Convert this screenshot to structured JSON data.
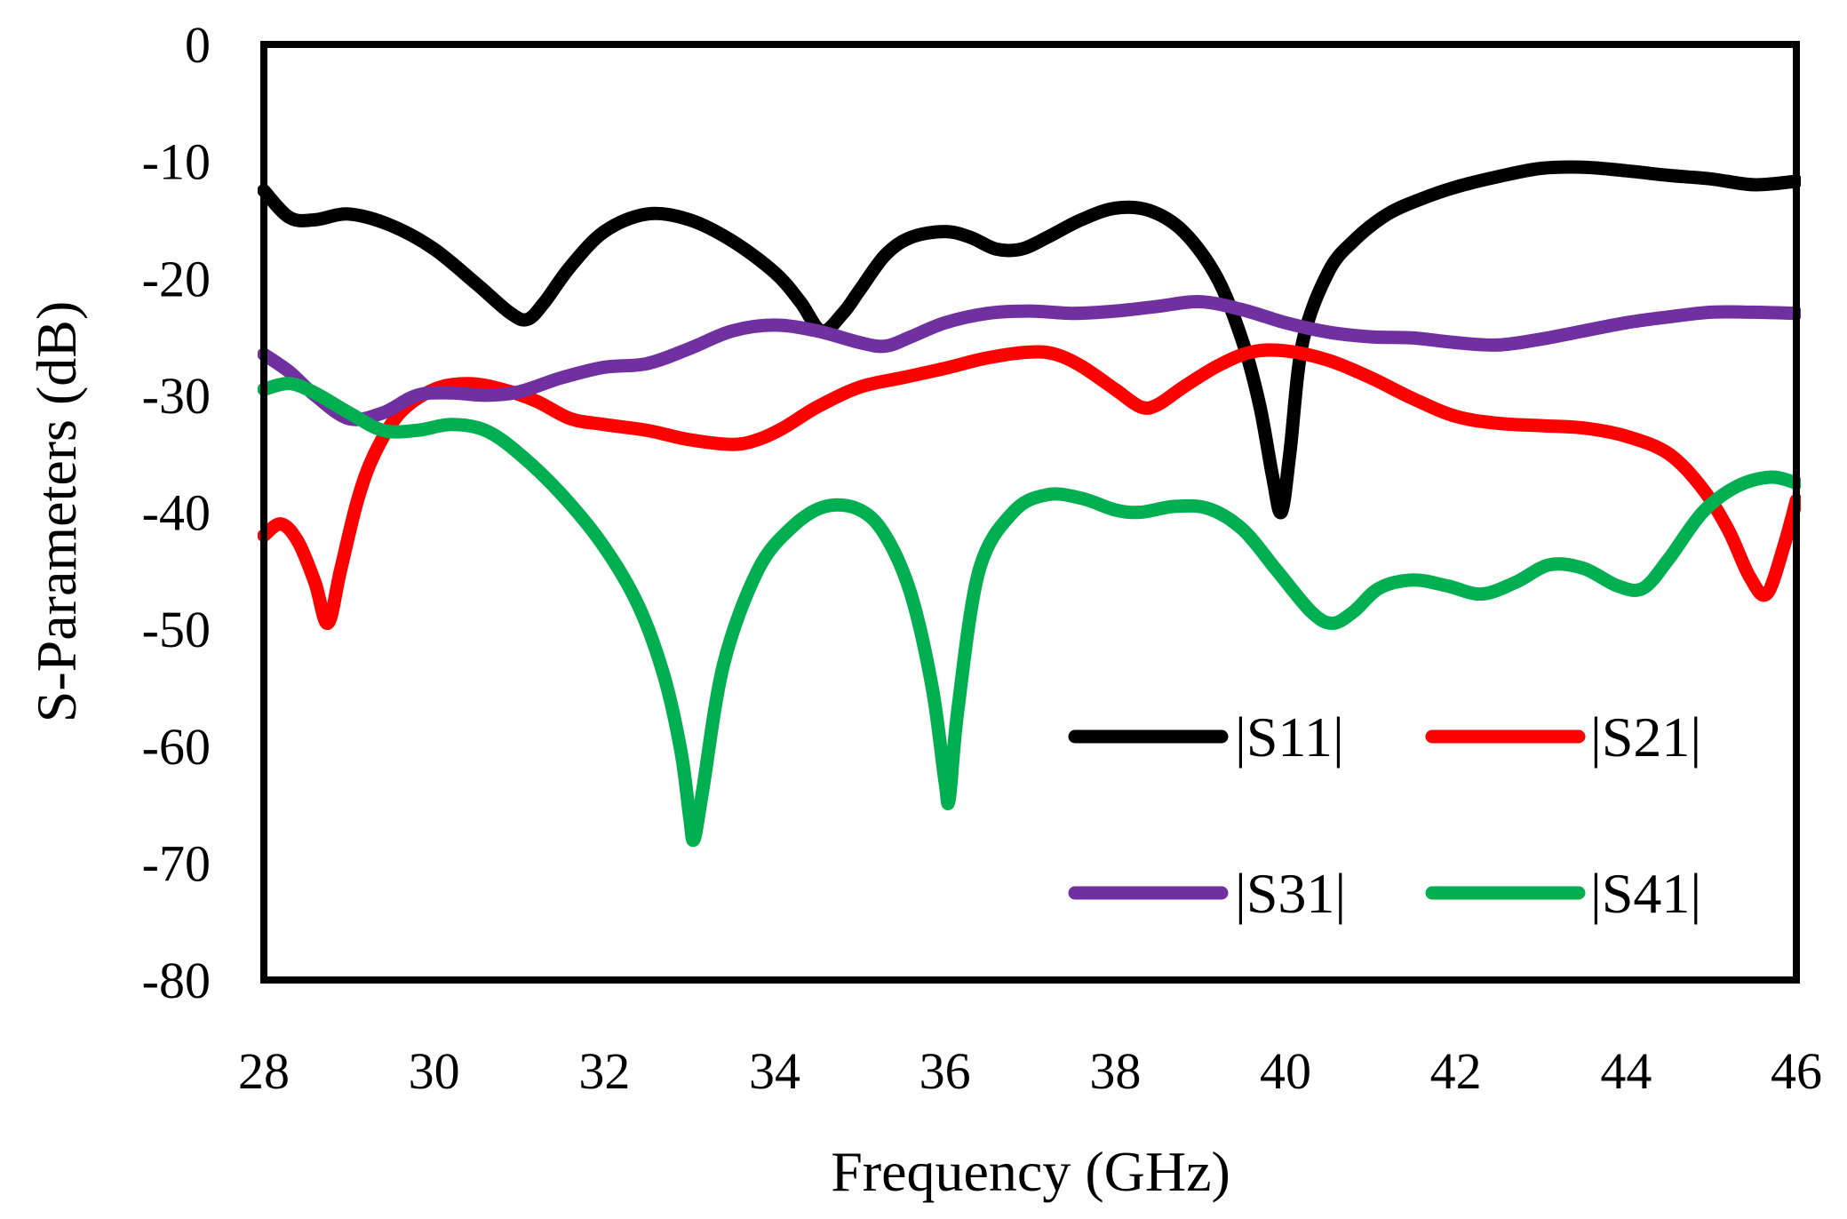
{
  "chart_data": {
    "type": "line",
    "title": "",
    "xlabel": "Frequency (GHz)",
    "ylabel": "S-Parameters  (dB)",
    "xlim": [
      28,
      46
    ],
    "ylim": [
      -80,
      0
    ],
    "xticks": [
      28,
      30,
      32,
      34,
      36,
      38,
      40,
      42,
      44,
      46
    ],
    "yticks": [
      0,
      -10,
      -20,
      -30,
      -40,
      -50,
      -60,
      -70,
      -80
    ],
    "xtick_labels": [
      "28",
      "30",
      "32",
      "34",
      "36",
      "38",
      "40",
      "42",
      "44",
      "46"
    ],
    "ytick_labels": [
      "0",
      "-10",
      "-20",
      "-30",
      "-40",
      "-50",
      "-60",
      "-70",
      "-80"
    ],
    "grid": false,
    "legend_position": "bottom-right",
    "series": [
      {
        "name": "|S11|",
        "color": "#000000",
        "x": [
          28,
          28.3,
          28.6,
          29,
          29.5,
          30,
          30.5,
          30.9,
          31.1,
          31.3,
          31.6,
          32,
          32.5,
          33,
          33.5,
          34,
          34.3,
          34.55,
          34.8,
          35,
          35.3,
          35.6,
          36,
          36.3,
          36.6,
          36.9,
          37.2,
          37.6,
          38,
          38.4,
          38.8,
          39.2,
          39.5,
          39.7,
          39.85,
          39.95,
          40.05,
          40.2,
          40.5,
          40.8,
          41.2,
          41.6,
          42,
          42.5,
          43,
          43.5,
          44,
          44.5,
          45,
          45.5,
          46
        ],
        "values": [
          -12.5,
          -14.8,
          -15.0,
          -14.5,
          -15.5,
          -17.5,
          -20.5,
          -23.0,
          -23.5,
          -22.0,
          -19.0,
          -16.0,
          -14.5,
          -15.0,
          -16.8,
          -19.5,
          -22.0,
          -24.5,
          -23.0,
          -21.0,
          -18.0,
          -16.5,
          -16.0,
          -16.5,
          -17.5,
          -17.5,
          -16.5,
          -15.0,
          -14.0,
          -14.2,
          -16.0,
          -20.0,
          -25.5,
          -31.0,
          -37.0,
          -40.0,
          -35.0,
          -25.5,
          -19.5,
          -16.8,
          -14.5,
          -13.2,
          -12.2,
          -11.3,
          -10.6,
          -10.5,
          -10.8,
          -11.2,
          -11.5,
          -12.0,
          -11.7
        ]
      },
      {
        "name": "|S21|",
        "color": "#ff0000",
        "x": [
          28,
          28.2,
          28.4,
          28.6,
          28.75,
          28.9,
          29.1,
          29.3,
          29.6,
          30,
          30.4,
          30.8,
          31.2,
          31.6,
          32,
          32.5,
          33,
          33.5,
          33.8,
          34.1,
          34.5,
          35,
          35.5,
          36,
          36.5,
          37,
          37.3,
          37.6,
          38,
          38.3,
          38.5,
          38.8,
          39.2,
          39.6,
          40,
          40.5,
          41,
          41.5,
          42,
          42.5,
          43,
          43.5,
          44,
          44.5,
          44.9,
          45.2,
          45.45,
          45.65,
          45.85,
          46
        ],
        "values": [
          -42.0,
          -41.0,
          -42.5,
          -46.0,
          -49.5,
          -45.0,
          -39.0,
          -35.0,
          -31.5,
          -29.5,
          -29.0,
          -29.5,
          -30.5,
          -32.0,
          -32.5,
          -33.0,
          -33.8,
          -34.2,
          -33.8,
          -32.8,
          -31.0,
          -29.3,
          -28.5,
          -27.7,
          -26.8,
          -26.3,
          -26.5,
          -27.5,
          -29.5,
          -31.0,
          -30.8,
          -29.3,
          -27.5,
          -26.3,
          -26.2,
          -27.0,
          -28.5,
          -30.3,
          -31.8,
          -32.4,
          -32.6,
          -32.8,
          -33.5,
          -35.0,
          -38.0,
          -41.5,
          -45.5,
          -47.0,
          -43.0,
          -39.0
        ]
      },
      {
        "name": "|S31|",
        "color": "#7030a0",
        "x": [
          28,
          28.3,
          28.6,
          29,
          29.4,
          29.8,
          30.2,
          30.6,
          31,
          31.5,
          32,
          32.5,
          33,
          33.5,
          34,
          34.5,
          35,
          35.3,
          35.6,
          36,
          36.5,
          37,
          37.5,
          38,
          38.5,
          39,
          39.5,
          40,
          40.5,
          41,
          41.5,
          42,
          42.5,
          43,
          43.5,
          44,
          44.5,
          45,
          45.5,
          46
        ],
        "values": [
          -26.5,
          -28.0,
          -30.0,
          -32.0,
          -31.5,
          -30.0,
          -29.8,
          -30.0,
          -29.7,
          -28.5,
          -27.6,
          -27.3,
          -26.0,
          -24.5,
          -24.0,
          -24.5,
          -25.5,
          -25.8,
          -25.0,
          -23.8,
          -23.0,
          -22.8,
          -23.0,
          -22.8,
          -22.4,
          -22.0,
          -22.7,
          -23.8,
          -24.6,
          -25.0,
          -25.1,
          -25.5,
          -25.7,
          -25.2,
          -24.5,
          -23.8,
          -23.3,
          -22.9,
          -22.9,
          -23.0
        ]
      },
      {
        "name": "|S41|",
        "color": "#00b050",
        "x": [
          28,
          28.3,
          28.6,
          29,
          29.4,
          29.8,
          30.2,
          30.6,
          31,
          31.5,
          32,
          32.4,
          32.7,
          32.9,
          33.0,
          33.05,
          33.15,
          33.4,
          33.8,
          34.2,
          34.6,
          35,
          35.3,
          35.6,
          35.85,
          36.0,
          36.05,
          36.15,
          36.4,
          36.8,
          37.2,
          37.6,
          38,
          38.3,
          38.7,
          39.1,
          39.5,
          39.9,
          40.3,
          40.55,
          40.8,
          41.1,
          41.5,
          41.9,
          42.3,
          42.7,
          43.1,
          43.5,
          43.9,
          44.2,
          44.5,
          44.9,
          45.3,
          45.7,
          46
        ],
        "values": [
          -29.5,
          -29.0,
          -29.8,
          -31.5,
          -33.0,
          -33.0,
          -32.5,
          -33.0,
          -35.0,
          -38.5,
          -43.0,
          -48.0,
          -54.0,
          -60.5,
          -66.0,
          -68.0,
          -64.0,
          -53.0,
          -45.0,
          -41.3,
          -39.5,
          -39.8,
          -42.0,
          -47.0,
          -55.0,
          -63.0,
          -64.5,
          -57.0,
          -45.0,
          -40.0,
          -38.5,
          -38.8,
          -39.8,
          -40.0,
          -39.5,
          -39.7,
          -41.5,
          -45.0,
          -48.5,
          -49.5,
          -48.5,
          -46.5,
          -45.8,
          -46.3,
          -47.0,
          -46.0,
          -44.5,
          -44.8,
          -46.3,
          -46.5,
          -44.0,
          -40.0,
          -37.8,
          -37.0,
          -37.5
        ]
      }
    ]
  }
}
